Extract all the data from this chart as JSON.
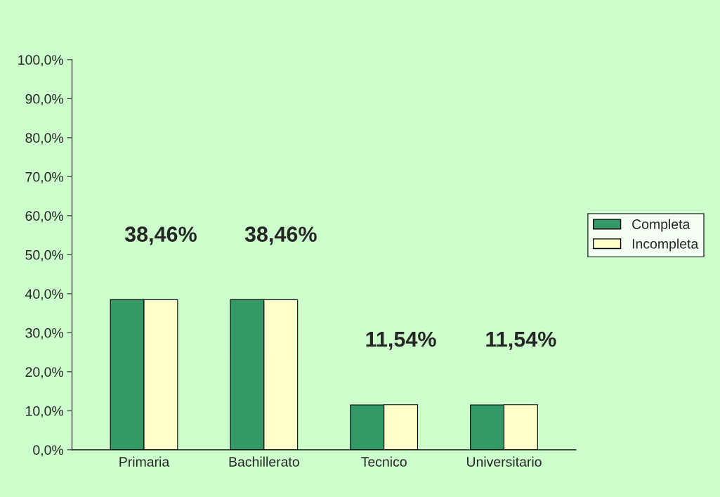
{
  "chart_data": {
    "type": "bar",
    "categories": [
      "Primaria",
      "Bachillerato",
      "Tecnico",
      "Universitario"
    ],
    "series": [
      {
        "name": "Completa",
        "color": "#339966",
        "values": [
          38.5,
          38.5,
          11.5,
          11.5
        ]
      },
      {
        "name": "Incompleta",
        "color": "#ffffcc",
        "values": [
          38.46,
          38.46,
          11.54,
          11.54
        ],
        "value_labels": [
          "38,46%",
          "38,46%",
          "11,54%",
          "11,54%"
        ]
      }
    ],
    "ylim": [
      0,
      100
    ],
    "yticks": [
      {
        "value": 0,
        "label": "0,0%"
      },
      {
        "value": 10,
        "label": "10,0%"
      },
      {
        "value": 20,
        "label": "20,0%"
      },
      {
        "value": 30,
        "label": "30,0%"
      },
      {
        "value": 40,
        "label": "40,0%"
      },
      {
        "value": 50,
        "label": "50,0%"
      },
      {
        "value": 60,
        "label": "60,0%"
      },
      {
        "value": 70,
        "label": "70,0%"
      },
      {
        "value": 80,
        "label": "80,0%"
      },
      {
        "value": 90,
        "label": "90,0%"
      },
      {
        "value": 100,
        "label": "100,0%"
      }
    ],
    "grid": false,
    "legend": "right"
  }
}
